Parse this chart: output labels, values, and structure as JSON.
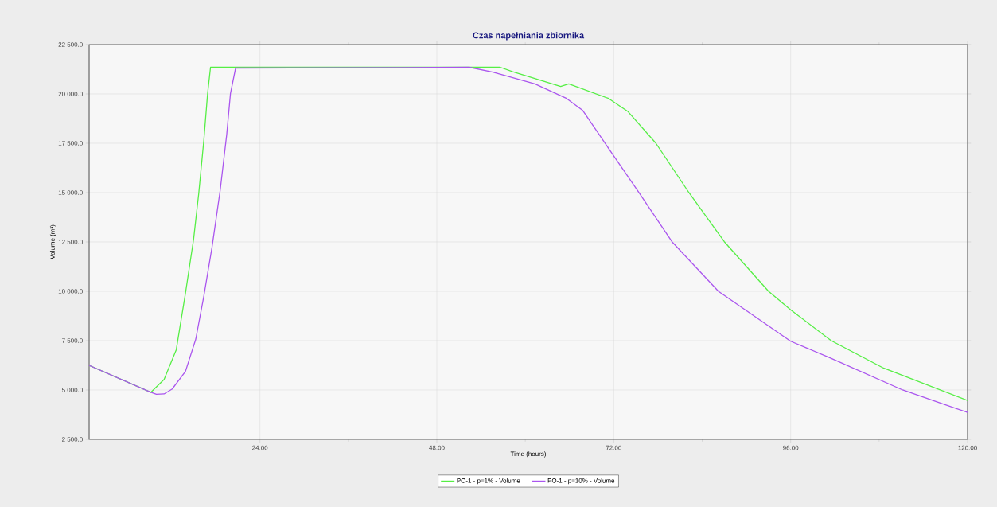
{
  "chart_data": {
    "type": "line",
    "title": "Czas napełniania zbiornika",
    "xlabel": "Time (hours)",
    "ylabel": "Volume (m³)",
    "xlim": [
      0.83,
      120
    ],
    "ylim": [
      2500,
      22500
    ],
    "xticks": [
      {
        "value": 24,
        "label": "24.00"
      },
      {
        "value": 48,
        "label": "48.00"
      },
      {
        "value": 72,
        "label": "72.00"
      },
      {
        "value": 96,
        "label": "96.00"
      },
      {
        "value": 120,
        "label": "120.00"
      }
    ],
    "yticks": [
      {
        "value": 2500,
        "label": "2 500.0"
      },
      {
        "value": 5000,
        "label": "5 000.0"
      },
      {
        "value": 7500,
        "label": "7 500.0"
      },
      {
        "value": 10000,
        "label": "10 000.0"
      },
      {
        "value": 12500,
        "label": "12 500.0"
      },
      {
        "value": 15000,
        "label": "15 000.0"
      },
      {
        "value": 17500,
        "label": "17 500.0"
      },
      {
        "value": 20000,
        "label": "20 000.0"
      },
      {
        "value": 22500,
        "label": "22 500.0"
      }
    ],
    "grid": true,
    "legend": "bottom",
    "marker": "none",
    "line_style": "solid",
    "series": [
      {
        "name": "PO-1 - p=1% - Volume",
        "color": "#55ee44",
        "x": [
          0.83,
          9.2,
          11.0,
          12.65,
          13.9,
          15.0,
          15.7,
          16.4,
          16.9,
          17.3,
          52.4,
          56.6,
          58.3,
          64.8,
          65.9,
          71.3,
          73.95,
          77.7,
          82.2,
          87.0,
          93.0,
          96.0,
          101.5,
          108.6,
          120
        ],
        "values": [
          6250,
          4880,
          5530,
          7040,
          9900,
          12630,
          14960,
          17690,
          20010,
          21350,
          21350,
          21350,
          21120,
          20380,
          20510,
          19770,
          19100,
          17510,
          15000,
          12510,
          10000,
          9060,
          7500,
          6110,
          4470
        ]
      },
      {
        "name": "PO-1 - p=10% - Volume",
        "color": "#aa55ee",
        "x": [
          0.83,
          9.2,
          9.96,
          11.0,
          12.1,
          13.9,
          15.3,
          16.4,
          17.5,
          18.6,
          19.5,
          20.0,
          20.7,
          52.4,
          55.6,
          61.3,
          65.6,
          67.8,
          71.7,
          75.4,
          79.9,
          86.2,
          96.0,
          101.1,
          111.2,
          120
        ],
        "values": [
          6250,
          4880,
          4780,
          4800,
          5050,
          5940,
          7580,
          9770,
          12230,
          15090,
          17960,
          20010,
          21310,
          21350,
          21100,
          20510,
          19770,
          19160,
          17020,
          15010,
          12510,
          10000,
          7470,
          6670,
          5000,
          3860
        ]
      }
    ]
  }
}
